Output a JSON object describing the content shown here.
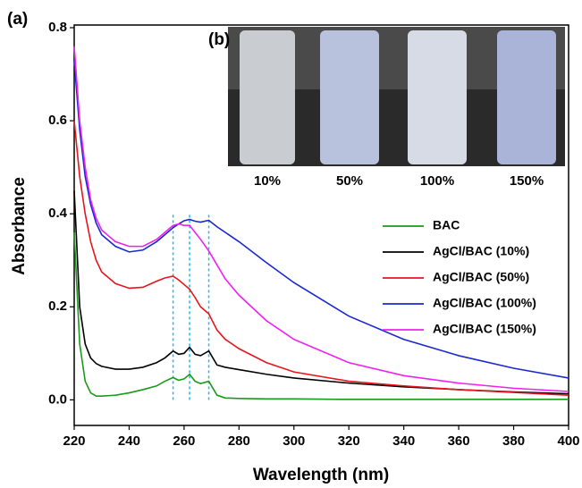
{
  "chart_data": {
    "type": "line",
    "panel_label": "(a)",
    "x_label": "Wavelength (nm)",
    "y_label": "Absorbance",
    "xlim": [
      220,
      400
    ],
    "ylim": [
      -0.055,
      0.8
    ],
    "xticks": [
      220,
      240,
      260,
      280,
      300,
      320,
      340,
      360,
      380,
      400
    ],
    "yticks": [
      {
        "value": 0,
        "label": "0.0"
      },
      0.2,
      0.4,
      0.6,
      0.8
    ],
    "vlines": [
      256,
      262,
      269
    ],
    "vline_color": "#22b8e6",
    "x": [
      220,
      222,
      224,
      226,
      228,
      230,
      235,
      240,
      245,
      250,
      253,
      256,
      258,
      260,
      262,
      264,
      266,
      269,
      272,
      275,
      280,
      290,
      300,
      320,
      340,
      360,
      380,
      400
    ],
    "series": [
      {
        "name": "BAC",
        "color": "#1a9a1a",
        "values": [
          0.36,
          0.12,
          0.04,
          0.015,
          0.008,
          0.008,
          0.01,
          0.015,
          0.022,
          0.03,
          0.04,
          0.048,
          0.042,
          0.045,
          0.055,
          0.04,
          0.035,
          0.04,
          0.01,
          0.004,
          0.003,
          0.002,
          0.002,
          0.001,
          0.001,
          0.001,
          0.001,
          0.001
        ]
      },
      {
        "name": "AgCl/BAC (10%)",
        "color": "#000000",
        "values": [
          0.45,
          0.2,
          0.12,
          0.09,
          0.078,
          0.072,
          0.066,
          0.066,
          0.07,
          0.08,
          0.09,
          0.105,
          0.098,
          0.1,
          0.113,
          0.098,
          0.095,
          0.105,
          0.075,
          0.07,
          0.065,
          0.055,
          0.047,
          0.036,
          0.028,
          0.022,
          0.017,
          0.013
        ]
      },
      {
        "name": "AgCl/BAC (50%)",
        "color": "#e8141c",
        "values": [
          0.6,
          0.48,
          0.4,
          0.34,
          0.3,
          0.275,
          0.25,
          0.24,
          0.242,
          0.255,
          0.262,
          0.266,
          0.258,
          0.248,
          0.238,
          0.22,
          0.2,
          0.185,
          0.15,
          0.13,
          0.11,
          0.08,
          0.06,
          0.04,
          0.03,
          0.022,
          0.016,
          0.01
        ]
      },
      {
        "name": "AgCl/BAC (100%)",
        "color": "#1a28d0",
        "values": [
          0.73,
          0.58,
          0.48,
          0.42,
          0.38,
          0.355,
          0.33,
          0.318,
          0.322,
          0.34,
          0.355,
          0.37,
          0.378,
          0.385,
          0.388,
          0.384,
          0.382,
          0.386,
          0.372,
          0.36,
          0.34,
          0.295,
          0.252,
          0.18,
          0.13,
          0.095,
          0.068,
          0.047
        ]
      },
      {
        "name": "AgCl/BAC (150%)",
        "color": "#f020f0",
        "values": [
          0.76,
          0.6,
          0.5,
          0.43,
          0.39,
          0.365,
          0.34,
          0.33,
          0.33,
          0.345,
          0.36,
          0.375,
          0.378,
          0.375,
          0.375,
          0.36,
          0.345,
          0.32,
          0.29,
          0.26,
          0.225,
          0.17,
          0.13,
          0.08,
          0.052,
          0.036,
          0.025,
          0.018
        ]
      }
    ],
    "inset_label": "(b)",
    "inset_captions": [
      "10%",
      "50%",
      "100%",
      "150%"
    ]
  }
}
